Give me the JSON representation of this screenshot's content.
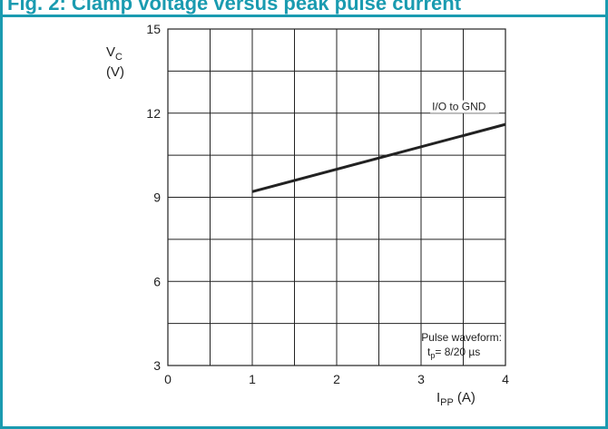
{
  "header": {
    "title": "Fig. 2: Clamp voltage versus peak pulse current"
  },
  "chart_data": {
    "type": "line",
    "title": "",
    "xlabel": {
      "main": "I",
      "sub": "PP",
      "unit": "(A)"
    },
    "ylabel": {
      "main": "V",
      "sub": "C",
      "unit": "(V)"
    },
    "xlim": [
      0,
      4
    ],
    "ylim": [
      3,
      15
    ],
    "xticks": [
      0,
      1,
      2,
      3,
      4
    ],
    "yticks": [
      3,
      6,
      9,
      12,
      15
    ],
    "grid": true,
    "x_minor_step": 0.5,
    "y_minor_step": 1.5,
    "series": [
      {
        "name": "I/O to GND",
        "x": [
          1,
          4
        ],
        "y": [
          9.2,
          11.6
        ],
        "color": "#222222"
      }
    ],
    "annotation": {
      "line1": "Pulse waveform:",
      "line2_main": "t",
      "line2_sub": "p",
      "line2_rest": "= 8/20 µs"
    }
  }
}
